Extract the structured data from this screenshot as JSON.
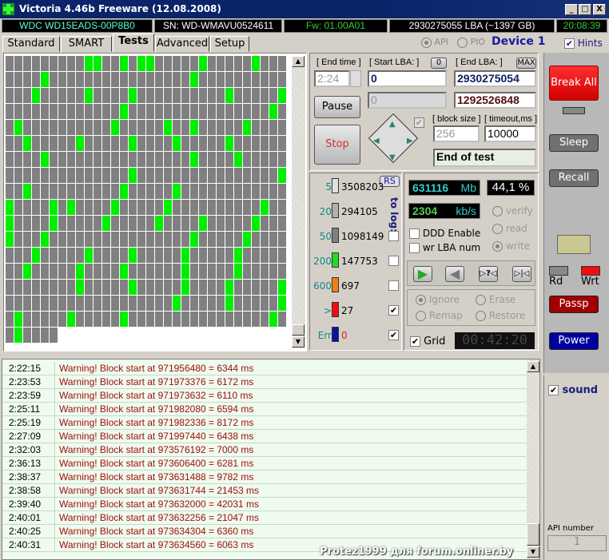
{
  "window": {
    "title": "Victoria 4.46b Freeware (12.08.2008)",
    "controls": [
      "_",
      "□",
      "X"
    ]
  },
  "info": {
    "model": "WDC WD15EADS-00P8B0",
    "serial": "SN: WD-WMAVU0524611",
    "firmware": "Fw: 01.00A01",
    "capacity": "2930275055 LBA (~1397 GB)",
    "clock": "20:08:39"
  },
  "tabs": [
    "Standard",
    "SMART",
    "Tests",
    "Advanced",
    "Setup"
  ],
  "active_tab": "Tests",
  "mode": {
    "api": "API",
    "pio": "PIO",
    "selected": "API",
    "device": "Device 1",
    "hints": "Hints",
    "hints_checked": true
  },
  "grid": {
    "columns": 32,
    "full_rows": 17,
    "last_row_cells": 6,
    "green_cells": [
      [
        9,
        10,
        13,
        15,
        16,
        22,
        28
      ],
      [
        4,
        21
      ],
      [
        3,
        9,
        14,
        25,
        31
      ],
      [
        13,
        30
      ],
      [
        1,
        12,
        18,
        21,
        27
      ],
      [
        2,
        8,
        14,
        19,
        25
      ],
      [
        4,
        21,
        26
      ],
      [
        14,
        31
      ],
      [
        2,
        13,
        19
      ],
      [
        0,
        5,
        7,
        12,
        18,
        29
      ],
      [
        0,
        5,
        11,
        17,
        22,
        28
      ],
      [
        0,
        4,
        21,
        27
      ],
      [
        3,
        9,
        14,
        20,
        26
      ],
      [
        2,
        8,
        13,
        20,
        26
      ],
      [
        8,
        14,
        20,
        25,
        31
      ],
      [
        19,
        25,
        31
      ],
      [
        1,
        7,
        13,
        30
      ],
      [
        1
      ]
    ]
  },
  "controls": {
    "end_time_label": "[ End time ]",
    "end_time": "2:24",
    "start_lba_label": "[ Start LBA: ]",
    "zero_btn": "0",
    "start_lba": "0",
    "current_lba": "0",
    "end_lba_label": "[ End LBA: ]",
    "max_btn": "MAX",
    "end_lba": "2930275054",
    "end_lba2": "1292526848",
    "pause": "Pause",
    "stop": "Stop",
    "block_size_label": "[ block size ]",
    "block_size": "256",
    "timeout_label": "[ timeout,ms ]",
    "timeout": "10000",
    "end_action": "End of test"
  },
  "stats": {
    "rs": "RS",
    "to_log": "to log:",
    "rows": [
      {
        "thr": "5",
        "count": "3508203",
        "color": "#e0e0e0",
        "log": null
      },
      {
        "thr": "20",
        "count": "294105",
        "color": "#b0b0b0",
        "log": null
      },
      {
        "thr": "50",
        "count": "1098149",
        "color": "#808080",
        "log": false
      },
      {
        "thr": "200",
        "count": "147753",
        "color": "#22dd22",
        "log": false
      },
      {
        "thr": "600",
        "count": "697",
        "color": "#f08010",
        "log": false
      },
      {
        "thr": ">",
        "count": "27",
        "color": "#ee1010",
        "log": true
      },
      {
        "thr": "Err",
        "count": "0",
        "color": "#1010a0",
        "log": true
      }
    ]
  },
  "progress": {
    "mb": "631116",
    "mb_unit": "Mb",
    "percent": "44,1 %",
    "speed": "2304",
    "speed_unit": "kb/s",
    "verify": "verify",
    "read": "read",
    "write": "write",
    "selected": "write",
    "ddd": "DDD Enable",
    "wrlba": "wr LBA num",
    "ignore": "Ignore",
    "erase": "Erase",
    "remap": "Remap",
    "restore": "Restore",
    "grid": "Grid",
    "timer": "00:42:20"
  },
  "side": {
    "break_all": "Break All",
    "sleep": "Sleep",
    "recall": "Recall",
    "rd": "Rd",
    "wrt": "Wrt",
    "passp": "Passp",
    "power": "Power",
    "sound": "sound",
    "api_number": "API number",
    "api_value": "1",
    "colors": {
      "break": "#ee1111",
      "passp": "#a00000",
      "power": "#0000a0"
    }
  },
  "log": [
    {
      "t": "2:22:15",
      "m": "Warning! Block start at 971956480 = 6344 ms"
    },
    {
      "t": "2:23:53",
      "m": "Warning! Block start at 971973376 = 6172 ms"
    },
    {
      "t": "2:23:59",
      "m": "Warning! Block start at 971973632 = 6110 ms"
    },
    {
      "t": "2:25:11",
      "m": "Warning! Block start at 971982080 = 6594 ms"
    },
    {
      "t": "2:25:19",
      "m": "Warning! Block start at 971982336 = 8172 ms"
    },
    {
      "t": "2:27:09",
      "m": "Warning! Block start at 971997440 = 6438 ms"
    },
    {
      "t": "2:32:03",
      "m": "Warning! Block start at 973576192 = 7000 ms"
    },
    {
      "t": "2:36:13",
      "m": "Warning! Block start at 973606400 = 6281 ms"
    },
    {
      "t": "2:38:37",
      "m": "Warning! Block start at 973631488 = 9782 ms"
    },
    {
      "t": "2:38:58",
      "m": "Warning! Block start at 973631744 = 21453 ms"
    },
    {
      "t": "2:39:40",
      "m": "Warning! Block start at 973632000 = 42031 ms"
    },
    {
      "t": "2:40:01",
      "m": "Warning! Block start at 973632256 = 21047 ms"
    },
    {
      "t": "2:40:25",
      "m": "Warning! Block start at 973634304 = 6360 ms"
    },
    {
      "t": "2:40:31",
      "m": "Warning! Block start at 973634560 = 6063 ms"
    }
  ],
  "watermark": "Protez1999 для forum.onliner.by"
}
